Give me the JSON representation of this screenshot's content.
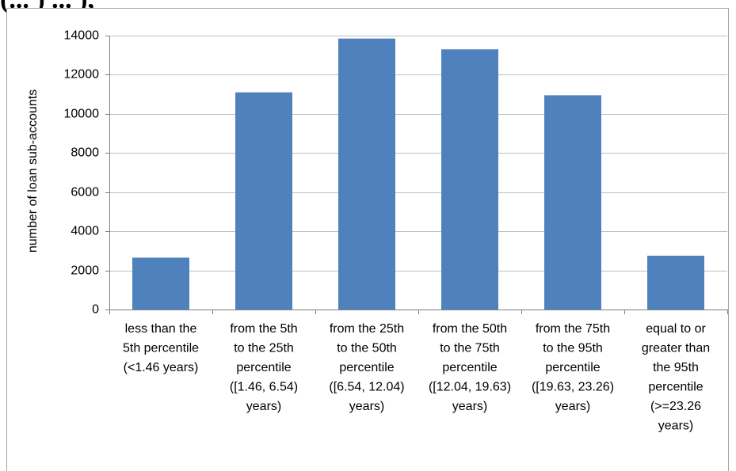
{
  "heading_fragment": "(... ) ... ),",
  "colors": {
    "bar": "#4f81bd",
    "grid": "#bfbfbf",
    "axis": "#7f7f7f"
  },
  "chart_data": {
    "type": "bar",
    "title": "",
    "xlabel": "",
    "ylabel": "number of loan sub-accounts",
    "ylim": [
      0,
      14000
    ],
    "yticks": [
      0,
      2000,
      4000,
      6000,
      8000,
      10000,
      12000,
      14000
    ],
    "grid": true,
    "legend": "none",
    "categories": [
      "less than the 5th percentile (<1.46 years)",
      "from the 5th to the 25th percentile ([1.46, 6.54) years)",
      "from the 25th to the 50th percentile ([6.54, 12.04) years)",
      "from the 50th to the 75th percentile ([12.04, 19.63) years)",
      "from the 75th to the 95th percentile ([19.63, 23.26) years)",
      "equal to or greater than the 95th percentile (>=23.26 years)"
    ],
    "category_lines": [
      [
        "less than the",
        "5th percentile",
        "(<1.46 years)"
      ],
      [
        "from the 5th",
        "to the 25th",
        "percentile",
        "([1.46, 6.54)",
        "years)"
      ],
      [
        "from the 25th",
        "to the 50th",
        "percentile",
        "([6.54, 12.04)",
        "years)"
      ],
      [
        "from the 50th",
        "to the 75th",
        "percentile",
        "([12.04, 19.63)",
        "years)"
      ],
      [
        "from the 75th",
        "to the 95th",
        "percentile",
        "([19.63, 23.26)",
        "years)"
      ],
      [
        "equal to or",
        "greater than",
        "the 95th",
        "percentile",
        "(>=23.26",
        "years)"
      ]
    ],
    "values": [
      2650,
      11100,
      13850,
      13300,
      10950,
      2750
    ]
  }
}
